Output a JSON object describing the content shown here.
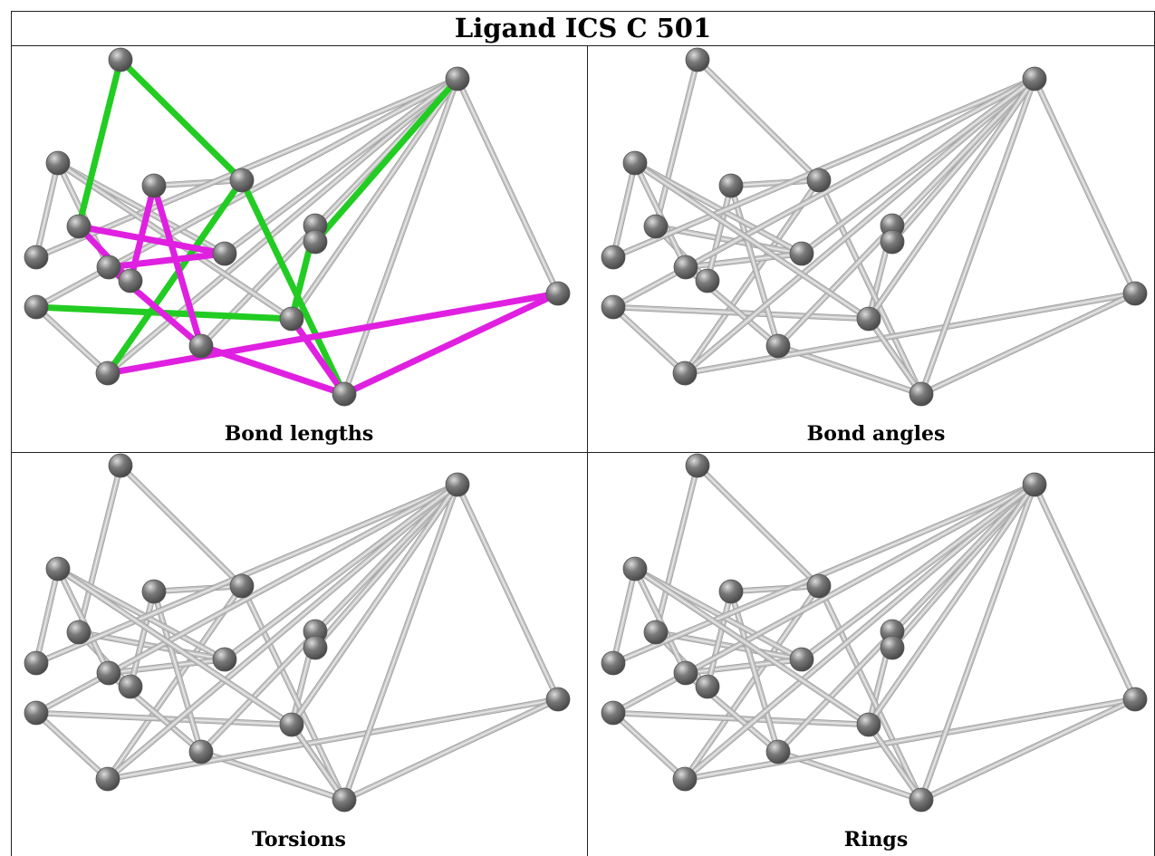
{
  "title": "Ligand ICS C 501",
  "panels": [
    {
      "key": "bond_lengths",
      "caption": "Bond lengths"
    },
    {
      "key": "bond_angles",
      "caption": "Bond angles"
    },
    {
      "key": "torsions",
      "caption": "Torsions"
    },
    {
      "key": "rings",
      "caption": "Rings"
    }
  ],
  "colors": {
    "bond_default": "#c4c4c4",
    "bond_green": "#22cc22",
    "bond_magenta": "#e020e0",
    "atom": "#7a7a7a"
  },
  "molecule": {
    "atoms": 20,
    "bonds": [
      [
        0,
        4,
        "green"
      ],
      [
        0,
        12,
        "green"
      ],
      [
        12,
        14,
        "green"
      ],
      [
        11,
        3,
        "green"
      ],
      [
        9,
        10,
        "green"
      ],
      [
        9,
        11,
        "green"
      ],
      [
        10,
        18,
        "green"
      ],
      [
        12,
        19,
        "green"
      ],
      [
        4,
        7,
        "magenta"
      ],
      [
        4,
        8,
        "magenta"
      ],
      [
        6,
        7,
        "magenta"
      ],
      [
        6,
        8,
        "magenta"
      ],
      [
        7,
        5,
        "magenta"
      ],
      [
        6,
        13,
        "magenta"
      ],
      [
        5,
        13,
        "magenta"
      ],
      [
        13,
        15,
        "magenta"
      ],
      [
        14,
        17,
        "magenta"
      ],
      [
        17,
        15,
        "magenta"
      ],
      [
        11,
        19,
        "magenta"
      ],
      [
        1,
        6,
        "gray"
      ],
      [
        1,
        8,
        "gray"
      ],
      [
        1,
        2,
        "gray"
      ],
      [
        5,
        12,
        "gray"
      ],
      [
        16,
        13,
        "gray"
      ],
      [
        16,
        17,
        "gray"
      ],
      [
        14,
        3,
        "gray"
      ],
      [
        14,
        16,
        "gray"
      ],
      [
        2,
        16,
        "gray"
      ],
      [
        18,
        19,
        "gray"
      ],
      [
        18,
        3,
        "gray"
      ],
      [
        11,
        15,
        "gray"
      ],
      [
        11,
        16,
        "gray"
      ],
      [
        8,
        16,
        "gray"
      ],
      [
        1,
        11,
        "gray"
      ]
    ]
  }
}
